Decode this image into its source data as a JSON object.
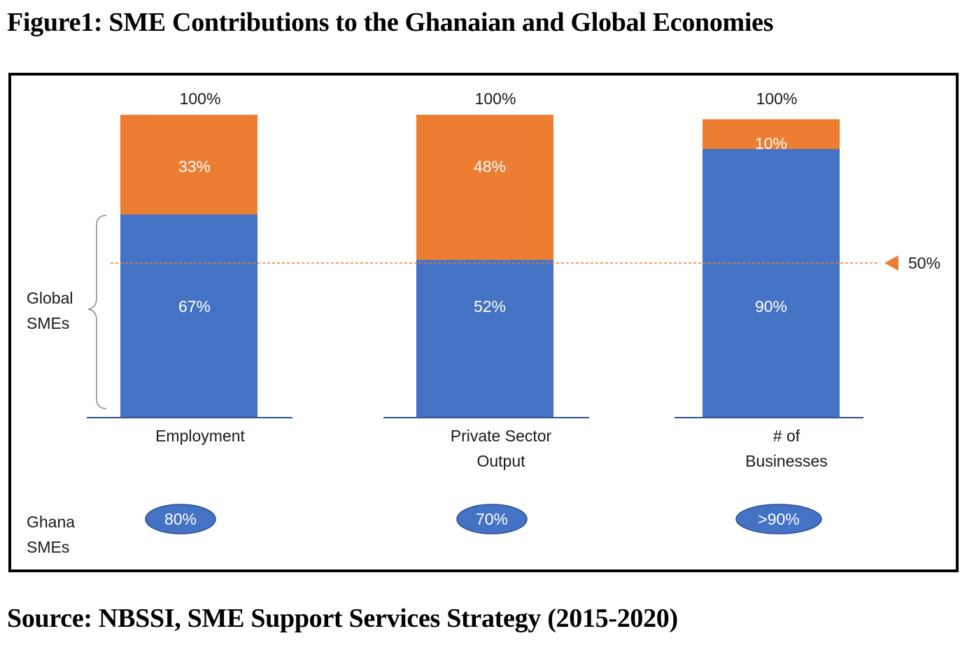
{
  "figure": {
    "title": "Figure1: SME Contributions to the Ghanaian and Global Economies",
    "source": "Source: NBSSI, SME Support Services Strategy (2015-2020)"
  },
  "chart_data": {
    "type": "bar",
    "stacked": true,
    "categories": [
      [
        "Employment"
      ],
      [
        "Private Sector",
        "Output"
      ],
      [
        "# of",
        "Businesses"
      ]
    ],
    "ylim": [
      0,
      100
    ],
    "series": [
      {
        "name": "",
        "color": "#4472C4",
        "values": [
          67,
          52,
          90
        ],
        "labels": [
          "67%",
          "52%",
          "90%"
        ]
      },
      {
        "name": "",
        "color": "#ED7D31",
        "values": [
          33,
          48,
          10
        ],
        "labels": [
          "33%",
          "48%",
          "10%"
        ]
      }
    ],
    "totals": [
      "100%",
      "100%",
      "100%"
    ],
    "group_label": [
      "Global",
      "SMEs"
    ],
    "reference_line": {
      "value": 50,
      "label": "50%",
      "color": "#ED7D31"
    },
    "ghana": {
      "label": [
        "Ghana",
        "SMEs"
      ],
      "values": [
        "80%",
        "70%",
        ">90%"
      ],
      "color": "#4472C4"
    }
  }
}
